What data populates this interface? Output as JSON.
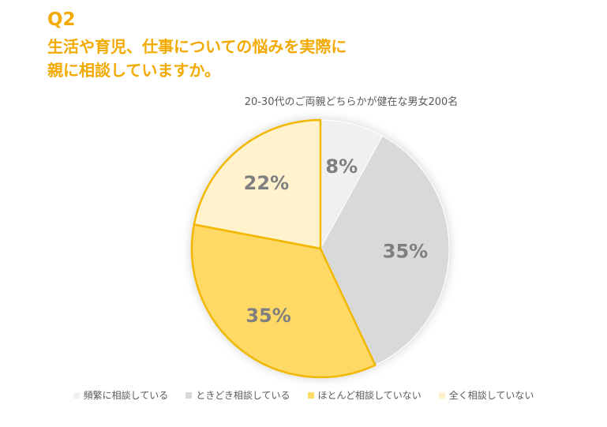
{
  "header": {
    "question_label": "Q2",
    "question_line1": "生活や育児、仕事についての悩みを実際に",
    "question_line2": "親に相談していますか。",
    "accent_color": "#F2A900"
  },
  "chart_data": {
    "type": "pie",
    "title": "",
    "subtitle": "20-30代のご両親どちらかが健在な男女200名",
    "categories": [
      "頻繁に相談している",
      "ときどき相談している",
      "ほとんど相談していない",
      "全く相談していない"
    ],
    "values": [
      8,
      35,
      35,
      22
    ],
    "data_labels": [
      "8%",
      "35%",
      "35%",
      "22%"
    ],
    "colors": [
      "#F0F0F0",
      "#D9D9D9",
      "#FFD966",
      "#FFF2CC"
    ],
    "highlighted_slices": [
      2,
      3
    ],
    "highlight_border_color": "#F2B705",
    "label_color": "#7F7F7F",
    "legend_position": "bottom"
  }
}
